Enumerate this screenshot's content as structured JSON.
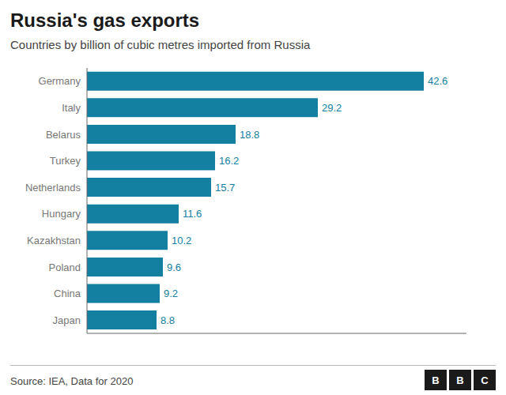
{
  "chart_data": {
    "type": "bar",
    "title": "Russia's gas exports",
    "subtitle": "Countries by billion of cubic metres imported from Russia",
    "source": "Source: IEA, Data for 2020",
    "annotations": [
      "B",
      "B",
      "C"
    ],
    "categories": [
      "Germany",
      "Italy",
      "Belarus",
      "Turkey",
      "Netherlands",
      "Hungary",
      "Kazakhstan",
      "Poland",
      "China",
      "Japan"
    ],
    "values": [
      42.6,
      29.2,
      18.8,
      16.2,
      15.7,
      11.6,
      10.2,
      9.6,
      9.2,
      8.8
    ],
    "color": "#1380a1",
    "orientation": "horizontal",
    "xlim": [
      0,
      48
    ],
    "data_labels": true,
    "tick_labels": "y",
    "grid": false
  }
}
